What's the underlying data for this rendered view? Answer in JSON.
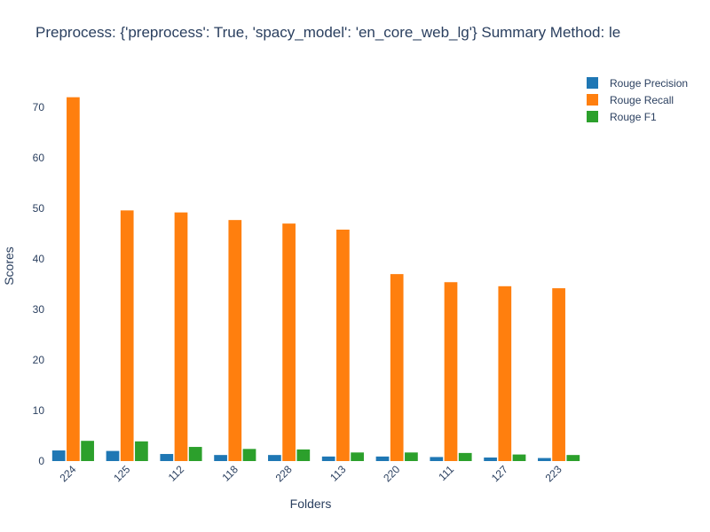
{
  "chart_data": {
    "type": "bar",
    "title": "Preprocess: {'preprocess': True, 'spacy_model': 'en_core_web_lg'} Summary Method: le",
    "xlabel": "Folders",
    "ylabel": "Scores",
    "categories": [
      "224",
      "125",
      "112",
      "118",
      "228",
      "113",
      "220",
      "111",
      "127",
      "223"
    ],
    "series": [
      {
        "name": "Rouge Precision",
        "color": "#1f77b4",
        "values": [
          2.1,
          2.0,
          1.4,
          1.2,
          1.2,
          0.9,
          0.9,
          0.8,
          0.7,
          0.6
        ]
      },
      {
        "name": "Rouge Recall",
        "color": "#ff7f0e",
        "values": [
          72.0,
          49.6,
          49.2,
          47.7,
          47.0,
          45.8,
          37.0,
          35.4,
          34.6,
          34.2
        ]
      },
      {
        "name": "Rouge F1",
        "color": "#2ca02c",
        "values": [
          4.0,
          3.9,
          2.8,
          2.4,
          2.3,
          1.7,
          1.7,
          1.6,
          1.3,
          1.2
        ]
      }
    ],
    "yticks": [
      0,
      10,
      20,
      30,
      40,
      50,
      60,
      70
    ],
    "ylim": [
      0,
      75.8
    ],
    "grid": false,
    "legend_position": "top-right"
  }
}
